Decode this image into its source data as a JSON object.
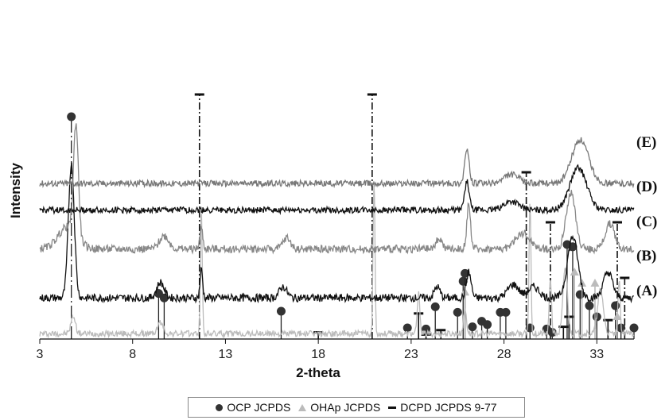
{
  "chart_data": {
    "type": "line",
    "title": "",
    "xlabel": "2-theta",
    "ylabel": "Intensity",
    "xlim": [
      3,
      35
    ],
    "x_ticks": [
      3,
      8,
      13,
      18,
      23,
      28,
      33
    ],
    "x_tick_labels": [
      "3",
      "8",
      "13",
      "18",
      "23",
      "28",
      "33"
    ],
    "y_ticks_shown": false,
    "grid": false,
    "legend_position": "bottom",
    "series": [
      {
        "name": "(A)",
        "color": "#bbbbbb",
        "baseline": 0.48,
        "noise": 0.8,
        "peaks": [
          [
            4.8,
            1.6,
            0.12
          ],
          [
            9.5,
            1.0,
            0.15
          ],
          [
            11.7,
            11,
            0.05
          ],
          [
            21.0,
            14,
            0.05
          ],
          [
            23.4,
            3.6,
            0.07
          ],
          [
            25.9,
            2.2,
            0.08
          ],
          [
            29.4,
            12,
            0.05
          ],
          [
            30.5,
            5.0,
            0.06
          ],
          [
            31.3,
            6.0,
            0.12
          ],
          [
            33.2,
            4.0,
            0.15
          ],
          [
            34.2,
            5.0,
            0.06
          ]
        ]
      },
      {
        "name": "(B)",
        "color": "#111111",
        "baseline": 3.7,
        "noise": 1.0,
        "peaks": [
          [
            4.7,
            12.0,
            0.16
          ],
          [
            9.5,
            1.4,
            0.2
          ],
          [
            11.7,
            2.6,
            0.07
          ],
          [
            16.1,
            1.0,
            0.2
          ],
          [
            24.4,
            1.0,
            0.15
          ],
          [
            26.1,
            2.3,
            0.13
          ],
          [
            28.5,
            1.2,
            0.3
          ],
          [
            29.6,
            1.0,
            0.3
          ],
          [
            31.7,
            5.5,
            0.28
          ],
          [
            33.6,
            2.3,
            0.25
          ]
        ]
      },
      {
        "name": "(C)",
        "color": "#888888",
        "baseline": 8.1,
        "noise": 1.0,
        "peaks": [
          [
            4.5,
            2.0,
            0.5
          ],
          [
            4.95,
            10.0,
            0.13
          ],
          [
            9.7,
            1.2,
            0.25
          ],
          [
            11.7,
            1.9,
            0.08
          ],
          [
            16.3,
            1.0,
            0.2
          ],
          [
            24.5,
            1.0,
            0.15
          ],
          [
            26.1,
            4.0,
            0.1
          ],
          [
            29.0,
            1.4,
            0.4
          ],
          [
            31.6,
            5.0,
            0.25
          ],
          [
            33.7,
            2.3,
            0.25
          ]
        ]
      },
      {
        "name": "(D)",
        "color": "#111111",
        "baseline": 11.6,
        "noise": 0.8,
        "peaks": [
          [
            26.0,
            2.6,
            0.12
          ],
          [
            28.4,
            0.8,
            0.4
          ],
          [
            32.0,
            3.8,
            0.45
          ]
        ]
      },
      {
        "name": "(E)",
        "color": "#777777",
        "baseline": 14.0,
        "noise": 0.8,
        "peaks": [
          [
            26.0,
            3.0,
            0.12
          ],
          [
            28.4,
            0.8,
            0.4
          ],
          [
            32.1,
            3.9,
            0.45
          ]
        ]
      }
    ],
    "curve_labels": [
      "(E)",
      "(D)",
      "(C)",
      "(B)",
      "(A)"
    ],
    "reference_lines": {
      "ocp": [
        {
          "x": 4.7,
          "h": 20.0
        },
        {
          "x": 9.4,
          "h": 4.1
        },
        {
          "x": 9.7,
          "h": 3.7
        },
        {
          "x": 16.0,
          "h": 2.5
        },
        {
          "x": 22.8,
          "h": 1.0
        },
        {
          "x": 23.8,
          "h": 0.9
        },
        {
          "x": 24.3,
          "h": 2.9
        },
        {
          "x": 25.5,
          "h": 2.4
        },
        {
          "x": 25.8,
          "h": 5.2
        },
        {
          "x": 25.9,
          "h": 5.9
        },
        {
          "x": 26.3,
          "h": 1.1
        },
        {
          "x": 26.8,
          "h": 1.6
        },
        {
          "x": 27.1,
          "h": 1.3
        },
        {
          "x": 27.8,
          "h": 2.4
        },
        {
          "x": 28.1,
          "h": 2.4
        },
        {
          "x": 29.4,
          "h": 1.0
        },
        {
          "x": 30.3,
          "h": 0.9
        },
        {
          "x": 30.6,
          "h": 0.6
        },
        {
          "x": 31.4,
          "h": 8.5
        },
        {
          "x": 31.7,
          "h": 8.3
        },
        {
          "x": 32.1,
          "h": 4.0
        },
        {
          "x": 32.6,
          "h": 3.0
        },
        {
          "x": 33.0,
          "h": 2.0
        },
        {
          "x": 34.0,
          "h": 3.0
        },
        {
          "x": 34.3,
          "h": 1.0
        },
        {
          "x": 35.0,
          "h": 1.0
        }
      ],
      "ohap": [
        {
          "x": 25.9,
          "h": 4.2
        },
        {
          "x": 31.8,
          "h": 6.0
        },
        {
          "x": 32.2,
          "h": 5.0
        },
        {
          "x": 32.9,
          "h": 5.0
        },
        {
          "x": 34.1,
          "h": 2.0
        }
      ],
      "dcpd": [
        {
          "x": 11.6,
          "h": 22.0
        },
        {
          "x": 18.0,
          "h": 0.6
        },
        {
          "x": 20.9,
          "h": 22.0
        },
        {
          "x": 23.4,
          "h": 2.3
        },
        {
          "x": 23.8,
          "h": 0.4
        },
        {
          "x": 24.6,
          "h": 0.8
        },
        {
          "x": 29.2,
          "h": 15.0
        },
        {
          "x": 30.5,
          "h": 10.5
        },
        {
          "x": 31.2,
          "h": 1.1
        },
        {
          "x": 31.5,
          "h": 2.0
        },
        {
          "x": 33.6,
          "h": 1.7
        },
        {
          "x": 34.1,
          "h": 10.5
        },
        {
          "x": 34.5,
          "h": 5.5
        }
      ]
    },
    "legend": [
      {
        "marker": "circle",
        "label": "OCP JCPDS",
        "color": "#333333"
      },
      {
        "marker": "triangle",
        "label": "OHAp JCPDS",
        "color": "#bbbbbb"
      },
      {
        "marker": "dash",
        "label": "DCPD JCPDS 9-77",
        "color": "#111111"
      }
    ]
  }
}
